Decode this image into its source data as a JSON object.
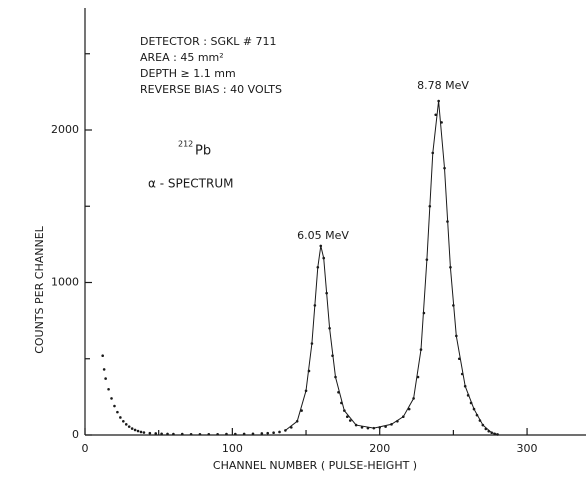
{
  "chart_data": {
    "type": "scatter",
    "x_label": "CHANNEL NUMBER ( PULSE-HEIGHT )",
    "y_label": "COUNTS PER CHANNEL",
    "info_lines": [
      "DETECTOR : SGKL # 711",
      "AREA : 45 mm²",
      "DEPTH ≥ 1.1 mm",
      "REVERSE BIAS : 40 VOLTS"
    ],
    "isotope": {
      "mass": "212",
      "symbol": "Pb"
    },
    "spectrum_label": "α - SPECTRUM",
    "peak_labels": [
      "6.05 MeV",
      "8.78 MeV"
    ],
    "xlim": [
      0,
      340
    ],
    "ylim": [
      0,
      2800
    ],
    "xticks": [
      0,
      100,
      200,
      300
    ],
    "yticks": [
      0,
      1000,
      2000
    ],
    "xminorticks": [
      50,
      150,
      250
    ],
    "yminorticks": [
      500,
      1500,
      2500
    ],
    "series": [
      {
        "mode": "markers",
        "color": "#1a1a1a",
        "x": [
          12,
          13,
          14,
          16,
          18,
          20,
          22,
          24,
          26,
          28,
          30,
          32,
          34,
          36,
          38,
          40,
          44,
          48,
          52,
          56,
          60,
          66,
          72,
          78,
          84,
          90,
          96,
          102,
          108,
          114,
          120,
          124,
          128,
          132,
          136,
          140,
          144,
          147,
          150,
          152,
          154,
          156,
          158,
          160,
          162,
          164,
          166,
          168,
          170,
          172,
          174,
          176,
          178,
          180,
          184,
          188,
          192,
          196,
          200,
          204,
          208,
          212,
          216,
          220,
          223,
          226,
          228,
          230,
          232,
          234,
          236,
          238,
          240,
          242,
          244,
          246,
          248,
          250,
          252,
          254,
          256,
          258,
          260,
          262,
          264,
          266,
          268,
          270,
          272,
          274,
          276,
          278,
          280
        ],
        "values": [
          520,
          430,
          370,
          300,
          240,
          190,
          150,
          115,
          90,
          70,
          55,
          42,
          33,
          26,
          20,
          16,
          12,
          10,
          8,
          7,
          6,
          6,
          5,
          5,
          5,
          5,
          6,
          6,
          7,
          8,
          10,
          12,
          15,
          20,
          30,
          50,
          90,
          160,
          290,
          420,
          600,
          850,
          1100,
          1240,
          1160,
          930,
          700,
          520,
          380,
          280,
          210,
          160,
          120,
          95,
          65,
          50,
          45,
          45,
          50,
          55,
          70,
          90,
          120,
          170,
          240,
          380,
          560,
          800,
          1150,
          1500,
          1850,
          2100,
          2190,
          2050,
          1750,
          1400,
          1100,
          850,
          650,
          500,
          400,
          320,
          260,
          210,
          170,
          130,
          95,
          65,
          40,
          25,
          15,
          8,
          4
        ]
      },
      {
        "mode": "line",
        "color": "#1a1a1a",
        "x": [
          136,
          144,
          150,
          154,
          158,
          160,
          162,
          166,
          170,
          176,
          184,
          196,
          208,
          216,
          223,
          228,
          232,
          236,
          240,
          244,
          248,
          252,
          258,
          264,
          270,
          276,
          280
        ],
        "values": [
          30,
          90,
          290,
          600,
          1100,
          1240,
          1160,
          700,
          380,
          160,
          65,
          45,
          70,
          120,
          240,
          560,
          1150,
          1850,
          2190,
          1750,
          1100,
          650,
          320,
          170,
          65,
          15,
          4
        ]
      }
    ]
  }
}
